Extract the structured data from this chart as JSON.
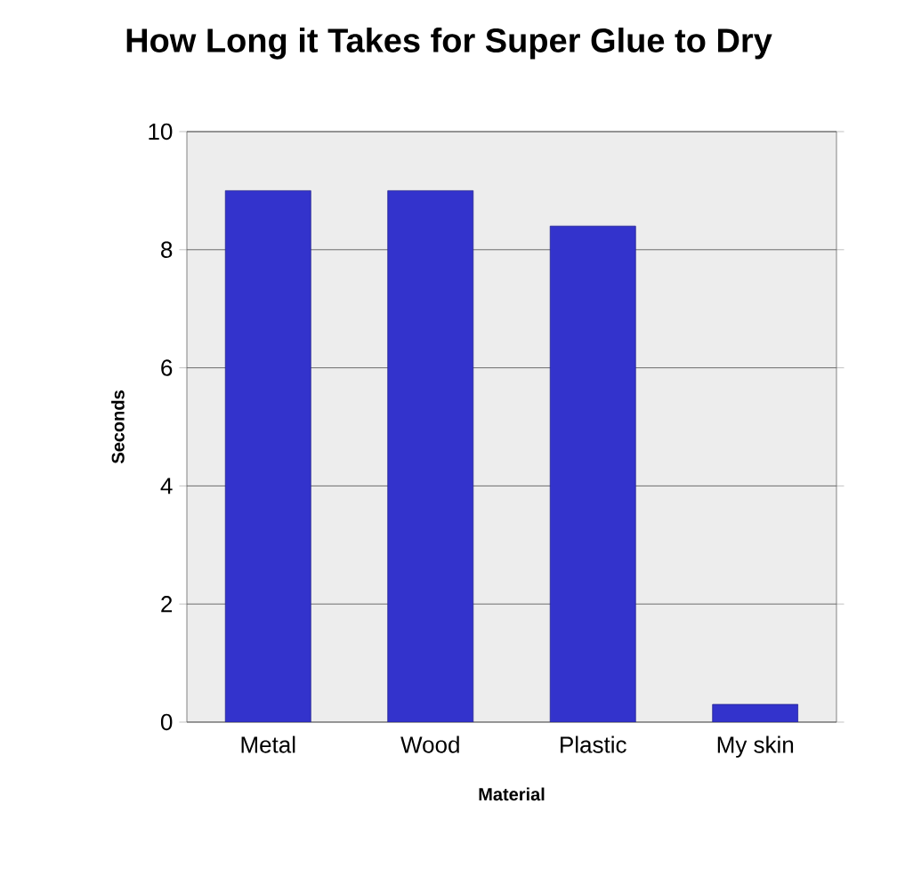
{
  "chart_data": {
    "type": "bar",
    "title": "How Long it Takes for Super Glue to Dry",
    "xlabel": "Material",
    "ylabel": "Seconds",
    "categories": [
      "Metal",
      "Wood",
      "Plastic",
      "My skin"
    ],
    "values": [
      9,
      9,
      8.4,
      0.3
    ],
    "color": "#3333cc",
    "ylim": [
      0,
      10
    ],
    "yticks": [
      0,
      2,
      4,
      6,
      8,
      10
    ],
    "grid": "y"
  }
}
